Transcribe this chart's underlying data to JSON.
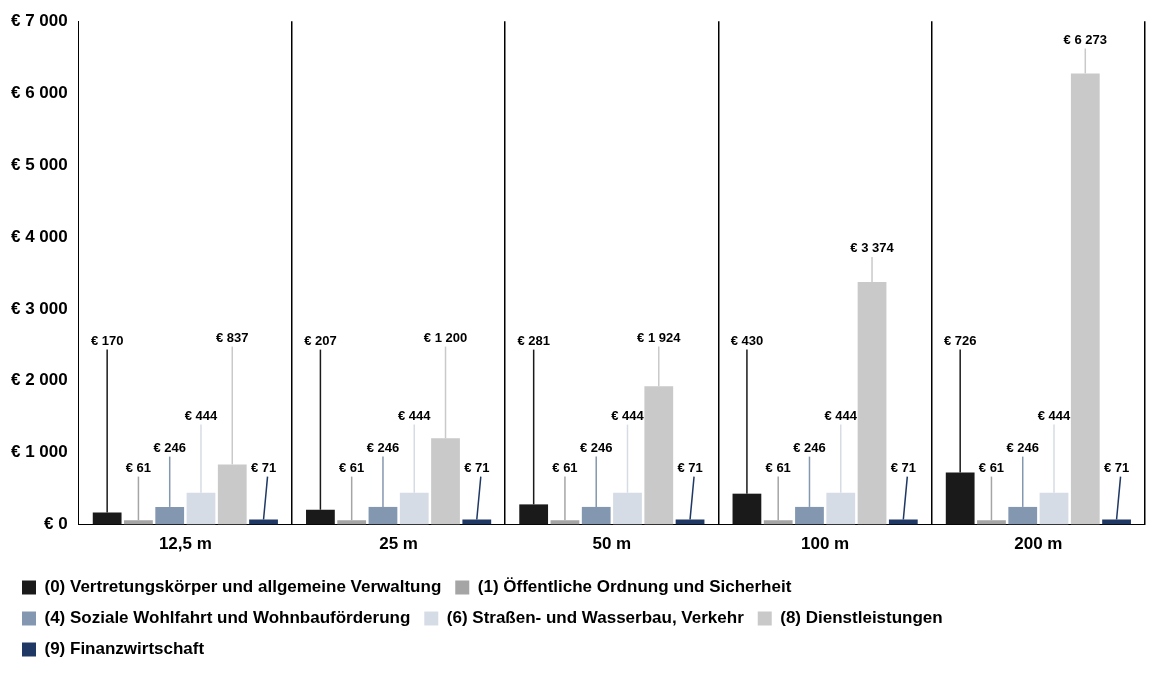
{
  "chart_data": {
    "type": "bar",
    "categories": [
      "12,5 m",
      "25 m",
      "50 m",
      "100 m",
      "200 m"
    ],
    "series": [
      {
        "name": "(0) Vertretungskörper und allgemeine Verwaltung",
        "color": "#1a1a1a",
        "values": [
          170,
          207,
          281,
          430,
          726
        ],
        "value_labels": [
          "€ 170",
          "€ 207",
          "€ 281",
          "€ 430",
          "€ 726"
        ]
      },
      {
        "name": "(1) Öffentliche Ordnung und Sicherheit",
        "color": "#a5a5a5",
        "values": [
          61,
          61,
          61,
          61,
          61
        ],
        "value_labels": [
          "€ 61",
          "€ 61",
          "€ 61",
          "€ 61",
          "€ 61"
        ]
      },
      {
        "name": "(4) Soziale Wohlfahrt und Wohnbauförderung",
        "color": "#8497b0",
        "values": [
          246,
          246,
          246,
          246,
          246
        ],
        "value_labels": [
          "€ 246",
          "€ 246",
          "€ 246",
          "€ 246",
          "€ 246"
        ]
      },
      {
        "name": "(6) Straßen- und Wasserbau, Verkehr",
        "color": "#d6dce5",
        "values": [
          444,
          444,
          444,
          444,
          444
        ],
        "value_labels": [
          "€ 444",
          "€ 444",
          "€ 444",
          "€ 444",
          "€ 444"
        ]
      },
      {
        "name": "(8) Dienstleistungen",
        "color": "#c9c9c9",
        "values": [
          837,
          1200,
          1924,
          3374,
          6273
        ],
        "value_labels": [
          "€ 837",
          "€ 1 200",
          "€ 1 924",
          "€ 3 374",
          "€ 6 273"
        ]
      },
      {
        "name": "(9) Finanzwirtschaft",
        "color": "#1f3864",
        "values": [
          71,
          71,
          71,
          71,
          71
        ],
        "value_labels": [
          "€ 71",
          "€ 71",
          "€ 71",
          "€ 71",
          "€ 71"
        ]
      }
    ],
    "ylim": [
      0,
      7000
    ],
    "yticks": [
      {
        "value": 0,
        "label": "€ 0"
      },
      {
        "value": 1000,
        "label": "€ 1 000"
      },
      {
        "value": 2000,
        "label": "€ 2 000"
      },
      {
        "value": 3000,
        "label": "€ 3 000"
      },
      {
        "value": 4000,
        "label": "€ 4 000"
      },
      {
        "value": 5000,
        "label": "€ 5 000"
      },
      {
        "value": 6000,
        "label": "€ 6 000"
      },
      {
        "value": 7000,
        "label": "€ 7 000"
      }
    ],
    "grid": "x",
    "legend": "bottom"
  }
}
